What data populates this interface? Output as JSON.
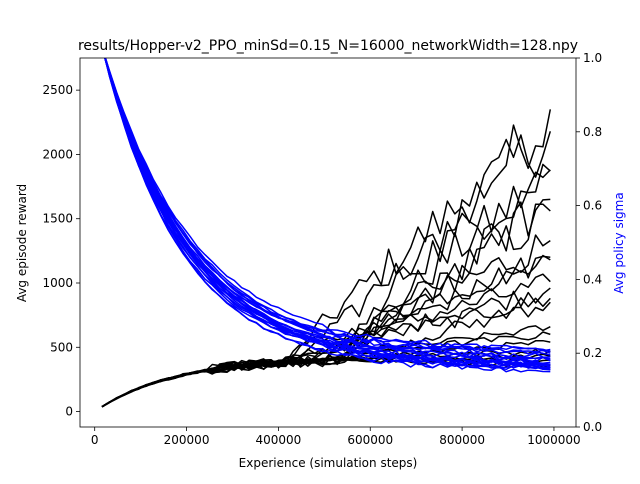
{
  "chart_data": {
    "type": "line",
    "title": "results/Hopper-v2_PPO_minSd=0.15_N=16000_networkWidth=128.npy",
    "xlabel": "Experience (simulation steps)",
    "ylabel_left": "Avg episode reward",
    "ylabel_right": "Avg policy sigma",
    "xlim": [
      -32000,
      1048000
    ],
    "ylim_left": [
      -120,
      2750
    ],
    "ylim_right": [
      0.0,
      1.0
    ],
    "x_ticks": [
      0,
      200000,
      400000,
      600000,
      800000,
      1000000
    ],
    "x_tick_labels": [
      "0",
      "200000",
      "400000",
      "600000",
      "800000",
      "1000000"
    ],
    "y_left_ticks": [
      0,
      500,
      1000,
      1500,
      2000,
      2500
    ],
    "y_left_tick_labels": [
      "0",
      "500",
      "1000",
      "1500",
      "2000",
      "2500"
    ],
    "y_right_ticks": [
      0.0,
      0.2,
      0.4,
      0.6,
      0.8,
      1.0
    ],
    "y_right_tick_labels": [
      "0.0",
      "0.2",
      "0.4",
      "0.6",
      "0.8",
      "1.0"
    ],
    "grid": false,
    "colors": {
      "reward": "#000000",
      "sigma": "#0000ff",
      "sigma_label": "#0000ff"
    },
    "n_runs": 20,
    "reward_finals": [
      2350,
      2180,
      1880,
      1560,
      1330,
      1200,
      1010,
      960,
      880,
      660,
      540,
      430,
      400,
      1870,
      1650,
      1180,
      850,
      600,
      470,
      360
    ],
    "sigma_finals": [
      0.15,
      0.155,
      0.16,
      0.165,
      0.17,
      0.175,
      0.18,
      0.19,
      0.2,
      0.21,
      0.155,
      0.16,
      0.165,
      0.17,
      0.18,
      0.185,
      0.16,
      0.17,
      0.195,
      0.205
    ]
  }
}
